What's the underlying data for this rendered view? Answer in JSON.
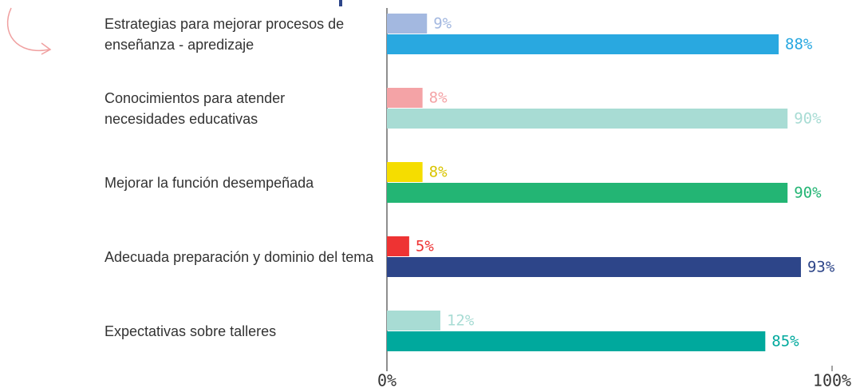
{
  "chart_data": {
    "type": "bar",
    "orientation": "horizontal",
    "categories": [
      "Estrategias para mejorar procesos de enseñanza - apredizaje",
      "Conocimientos para atender necesidades educativas",
      "Mejorar la función desempeñada",
      "Adecuada preparación y dominio del tema",
      "Expectativas sobre talleres"
    ],
    "series": [
      {
        "values": [
          9,
          8,
          8,
          5,
          12
        ],
        "value_labels": [
          "9%",
          "8%",
          "8%",
          "5%",
          "12%"
        ],
        "colors": [
          "#a3b8e0",
          "#f4a3a6",
          "#f5dd00",
          "#ee3333",
          "#a8dcd4"
        ]
      },
      {
        "values": [
          88,
          90,
          90,
          93,
          85
        ],
        "value_labels": [
          "88%",
          "90%",
          "90%",
          "93%",
          "85%"
        ],
        "colors": [
          "#29a8e0",
          "#a8dcd4",
          "#23b574",
          "#2d4589",
          "#00a99d"
        ]
      }
    ],
    "xlim": [
      0,
      100
    ],
    "xticks": [
      {
        "value": 0,
        "label": "0%"
      },
      {
        "value": 100,
        "label": "100%"
      }
    ]
  }
}
